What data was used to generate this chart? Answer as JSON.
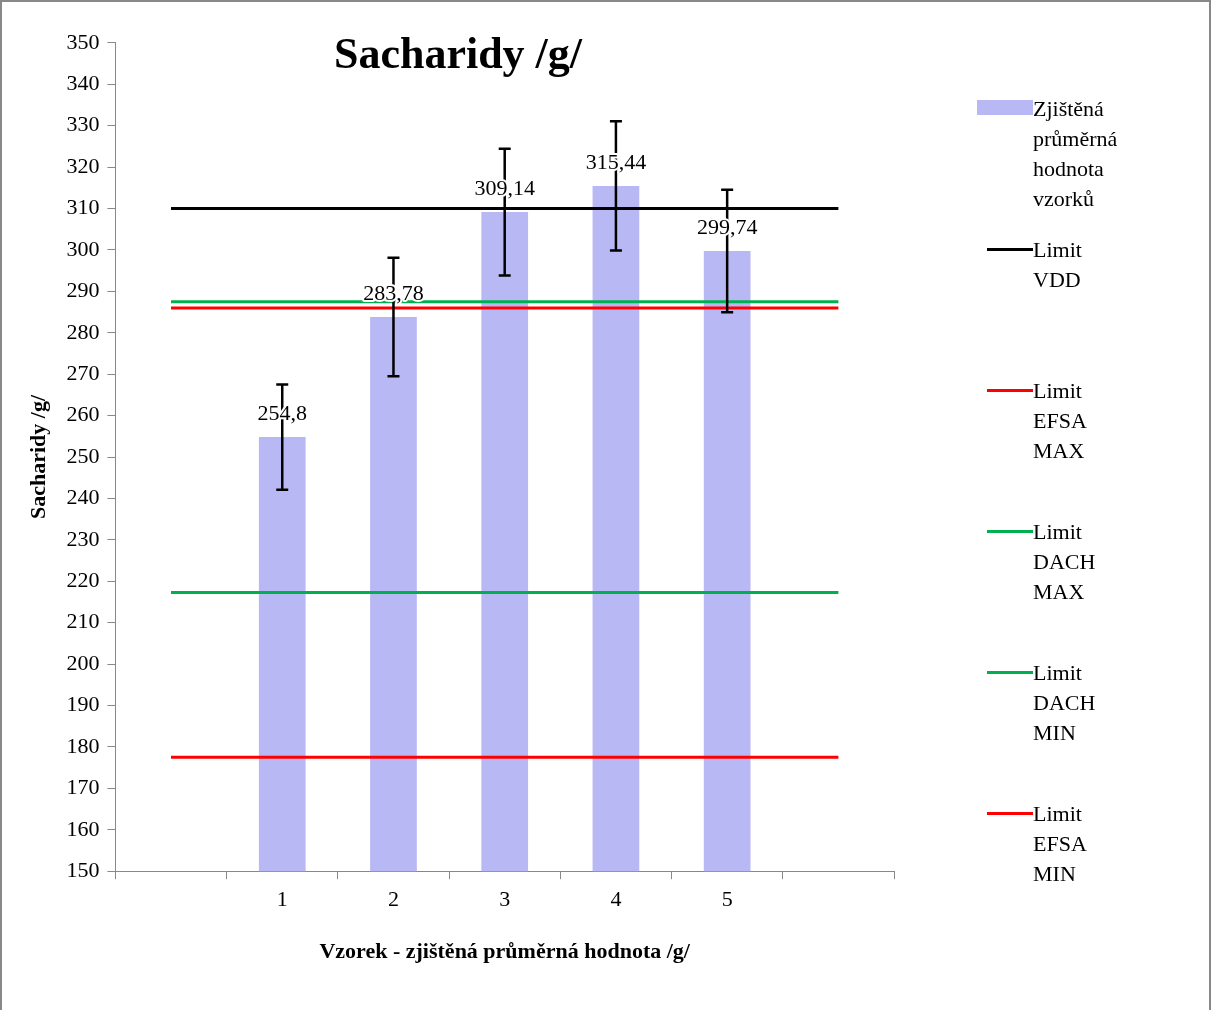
{
  "chart_data": {
    "type": "bar",
    "title": "Sacharidy /g/",
    "xlabel": "Vzorek - zjištěná průměrná hodnota /g/",
    "ylabel": "Sacharidy /g/",
    "categories": [
      null,
      "1",
      "2",
      "3",
      "4",
      "5",
      null
    ],
    "ylim": [
      150,
      350
    ],
    "yticks": [
      150,
      160,
      170,
      180,
      190,
      200,
      210,
      220,
      230,
      240,
      250,
      260,
      270,
      280,
      290,
      300,
      310,
      320,
      330,
      340,
      350
    ],
    "grid": false,
    "legend": "right",
    "series": [
      {
        "name": "Zjištěná průměrná hodnota vzorků",
        "color": "#b8b8f4",
        "values": [
          null,
          254.8,
          283.78,
          309.14,
          315.44,
          299.74,
          null
        ],
        "errors": [
          null,
          12.7,
          14.3,
          15.3,
          15.6,
          14.8,
          null
        ],
        "value_labels": [
          null,
          "254,8",
          "283,78",
          "309,14",
          "315,44",
          "299,74",
          null
        ]
      },
      {
        "name": "Limit VDD",
        "type": "line",
        "color": "#000000",
        "values": [
          310,
          310,
          310,
          310,
          310,
          310,
          310
        ]
      },
      {
        "name": "Limit EFSA MAX",
        "type": "line",
        "color": "#ff0000",
        "values": [
          286,
          286,
          286,
          286,
          286,
          286,
          286
        ]
      },
      {
        "name": "Limit DACH MAX",
        "type": "line",
        "color": "#00b050",
        "values": [
          287.5,
          287.5,
          287.5,
          287.5,
          287.5,
          287.5,
          287.5
        ]
      },
      {
        "name": "Limit DACH MIN",
        "type": "line",
        "color": "#00b050",
        "values": [
          217.3,
          217.3,
          217.3,
          217.3,
          217.3,
          217.3,
          217.3
        ]
      },
      {
        "name": "Limit EFSA MIN",
        "type": "line",
        "color": "#ff0000",
        "values": [
          177.5,
          177.5,
          177.5,
          177.5,
          177.5,
          177.5,
          177.5
        ]
      }
    ]
  }
}
